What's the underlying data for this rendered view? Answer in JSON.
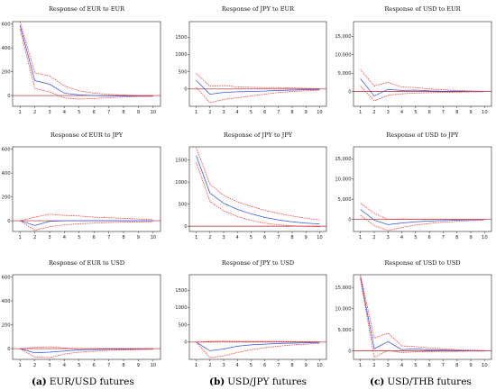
{
  "captions": [
    {
      "letter": "(a)",
      "text": "EUR/USD futures"
    },
    {
      "letter": "(b)",
      "text": "USD/JPY futures"
    },
    {
      "letter": "(c)",
      "text": "USD/THB futures"
    }
  ],
  "colors": {
    "irf": "#3355dd",
    "band": "#ee3333",
    "zero": "#aa2222",
    "axis": "#222222"
  },
  "chart_data": [
    {
      "type": "line",
      "title": "Response of EUR to EUR",
      "x": [
        1,
        2,
        3,
        4,
        5,
        6,
        7,
        8,
        9,
        10
      ],
      "xlim": [
        0.5,
        10.5
      ],
      "ylim": [
        -90,
        620
      ],
      "yticks": [
        {
          "v": 0,
          "label": "0"
        },
        {
          "v": 200,
          "label": "200"
        },
        {
          "v": 400,
          "label": "400"
        },
        {
          "v": 600,
          "label": "600"
        }
      ],
      "series": [
        {
          "values": [
            590,
            125,
            95,
            20,
            5,
            0,
            -3,
            -4,
            -5,
            -5
          ]
        },
        {
          "values": [
            620,
            190,
            165,
            80,
            40,
            20,
            10,
            4,
            0,
            -2
          ]
        },
        {
          "values": [
            560,
            60,
            30,
            -20,
            -30,
            -25,
            -18,
            -12,
            -8,
            -6
          ]
        }
      ]
    },
    {
      "type": "line",
      "title": "Response of JPY to EUR",
      "x": [
        1,
        2,
        3,
        4,
        5,
        6,
        7,
        8,
        9,
        10
      ],
      "xlim": [
        0.5,
        10.5
      ],
      "ylim": [
        -500,
        1950
      ],
      "yticks": [
        {
          "v": 0,
          "label": "0"
        },
        {
          "v": 500,
          "label": "500"
        },
        {
          "v": 1000,
          "label": "1000"
        },
        {
          "v": 1500,
          "label": "1500"
        }
      ],
      "series": [
        {
          "values": [
            250,
            -150,
            -100,
            -80,
            -70,
            -60,
            -40,
            -30,
            -20,
            -10
          ]
        },
        {
          "values": [
            450,
            80,
            100,
            60,
            50,
            40,
            40,
            30,
            20,
            10
          ]
        },
        {
          "values": [
            50,
            -400,
            -300,
            -250,
            -200,
            -150,
            -100,
            -70,
            -50,
            -30
          ]
        }
      ]
    },
    {
      "type": "line",
      "title": "Response of USD to EUR",
      "x": [
        1,
        2,
        3,
        4,
        5,
        6,
        7,
        8,
        9,
        10
      ],
      "xlim": [
        0.5,
        10.5
      ],
      "ylim": [
        -4000,
        19000
      ],
      "yticks": [
        {
          "v": 0,
          "label": "0"
        },
        {
          "v": 5000,
          "label": "5,000"
        },
        {
          "v": 10000,
          "label": "10,000"
        },
        {
          "v": 15000,
          "label": "15,000"
        }
      ],
      "series": [
        {
          "values": [
            3500,
            -1200,
            600,
            300,
            400,
            200,
            100,
            100,
            0,
            0
          ]
        },
        {
          "values": [
            6000,
            1500,
            2500,
            1200,
            1100,
            700,
            500,
            300,
            200,
            100
          ]
        },
        {
          "values": [
            1500,
            -2500,
            -1000,
            -600,
            -400,
            -300,
            -200,
            -150,
            -100,
            -50
          ]
        }
      ]
    },
    {
      "type": "line",
      "title": "Response of EUR to JPY",
      "x": [
        1,
        2,
        3,
        4,
        5,
        6,
        7,
        8,
        9,
        10
      ],
      "xlim": [
        0.5,
        10.5
      ],
      "ylim": [
        -90,
        620
      ],
      "yticks": [
        {
          "v": 0,
          "label": "0"
        },
        {
          "v": 200,
          "label": "200"
        },
        {
          "v": 400,
          "label": "400"
        },
        {
          "v": 600,
          "label": "600"
        }
      ],
      "series": [
        {
          "values": [
            0,
            -40,
            -5,
            0,
            0,
            0,
            0,
            0,
            0,
            0
          ]
        },
        {
          "values": [
            0,
            30,
            55,
            45,
            40,
            30,
            25,
            20,
            15,
            10
          ]
        },
        {
          "values": [
            0,
            -80,
            -50,
            -35,
            -25,
            -20,
            -15,
            -12,
            -10,
            -8
          ]
        }
      ]
    },
    {
      "type": "line",
      "title": "Response of JPY to JPY",
      "x": [
        1,
        2,
        3,
        4,
        5,
        6,
        7,
        8,
        9,
        10
      ],
      "xlim": [
        0.5,
        10.5
      ],
      "ylim": [
        -120,
        1800
      ],
      "yticks": [
        {
          "v": 0,
          "label": "0"
        },
        {
          "v": 500,
          "label": "500"
        },
        {
          "v": 1000,
          "label": "1000"
        },
        {
          "v": 1500,
          "label": "1500"
        }
      ],
      "series": [
        {
          "values": [
            1600,
            750,
            520,
            380,
            280,
            200,
            140,
            100,
            70,
            50
          ]
        },
        {
          "values": [
            1780,
            950,
            700,
            550,
            450,
            360,
            290,
            230,
            180,
            140
          ]
        },
        {
          "values": [
            1450,
            560,
            350,
            220,
            130,
            70,
            30,
            10,
            -5,
            -10
          ]
        }
      ]
    },
    {
      "type": "line",
      "title": "Response of USD to JPY",
      "x": [
        1,
        2,
        3,
        4,
        5,
        6,
        7,
        8,
        9,
        10
      ],
      "xlim": [
        0.5,
        10.5
      ],
      "ylim": [
        -3000,
        18000
      ],
      "yticks": [
        {
          "v": 0,
          "label": "0"
        },
        {
          "v": 5000,
          "label": "5,000"
        },
        {
          "v": 10000,
          "label": "10,000"
        },
        {
          "v": 15000,
          "label": "15,000"
        }
      ],
      "series": [
        {
          "values": [
            2500,
            -200,
            -1300,
            -900,
            -600,
            -400,
            -300,
            -200,
            -100,
            -50
          ]
        },
        {
          "values": [
            4000,
            1500,
            0,
            100,
            0,
            0,
            0,
            0,
            0,
            0
          ]
        },
        {
          "values": [
            1000,
            -1500,
            -2800,
            -2000,
            -1400,
            -1000,
            -700,
            -500,
            -300,
            -200
          ]
        }
      ]
    },
    {
      "type": "line",
      "title": "Response of EUR to USD",
      "x": [
        1,
        2,
        3,
        4,
        5,
        6,
        7,
        8,
        9,
        10
      ],
      "xlim": [
        0.5,
        10.5
      ],
      "ylim": [
        -90,
        620
      ],
      "yticks": [
        {
          "v": 0,
          "label": "0"
        },
        {
          "v": 200,
          "label": "200"
        },
        {
          "v": 400,
          "label": "400"
        },
        {
          "v": 600,
          "label": "600"
        }
      ],
      "series": [
        {
          "values": [
            0,
            -35,
            -30,
            -20,
            -10,
            -8,
            -5,
            -5,
            -3,
            -2
          ]
        },
        {
          "values": [
            0,
            10,
            15,
            5,
            0,
            0,
            0,
            0,
            0,
            0
          ]
        },
        {
          "values": [
            0,
            -70,
            -75,
            -45,
            -30,
            -22,
            -15,
            -12,
            -8,
            -6
          ]
        }
      ]
    },
    {
      "type": "line",
      "title": "Response of JPY to USD",
      "x": [
        1,
        2,
        3,
        4,
        5,
        6,
        7,
        8,
        9,
        10
      ],
      "xlim": [
        0.5,
        10.5
      ],
      "ylim": [
        -500,
        1950
      ],
      "yticks": [
        {
          "v": 0,
          "label": "0"
        },
        {
          "v": 500,
          "label": "500"
        },
        {
          "v": 1000,
          "label": "1000"
        },
        {
          "v": 1500,
          "label": "1500"
        }
      ],
      "series": [
        {
          "values": [
            0,
            -250,
            -200,
            -120,
            -80,
            -60,
            -40,
            -30,
            -20,
            -10
          ]
        },
        {
          "values": [
            0,
            20,
            30,
            20,
            20,
            20,
            20,
            15,
            10,
            10
          ]
        },
        {
          "values": [
            0,
            -450,
            -400,
            -300,
            -220,
            -160,
            -120,
            -80,
            -60,
            -40
          ]
        }
      ]
    },
    {
      "type": "line",
      "title": "Response of USD to USD",
      "x": [
        1,
        2,
        3,
        4,
        5,
        6,
        7,
        8,
        9,
        10
      ],
      "xlim": [
        0.5,
        10.5
      ],
      "ylim": [
        -2000,
        18000
      ],
      "yticks": [
        {
          "v": 0,
          "label": "0"
        },
        {
          "v": 5000,
          "label": "5,000"
        },
        {
          "v": 10000,
          "label": "10,000"
        },
        {
          "v": 15000,
          "label": "15,000"
        }
      ],
      "series": [
        {
          "values": [
            17500,
            500,
            2200,
            300,
            500,
            200,
            200,
            100,
            0,
            0
          ]
        },
        {
          "values": [
            18000,
            3000,
            4200,
            1200,
            1000,
            700,
            500,
            300,
            200,
            100
          ]
        },
        {
          "values": [
            17000,
            -1500,
            100,
            -400,
            -200,
            -200,
            -100,
            -100,
            -50,
            -50
          ]
        }
      ]
    }
  ]
}
